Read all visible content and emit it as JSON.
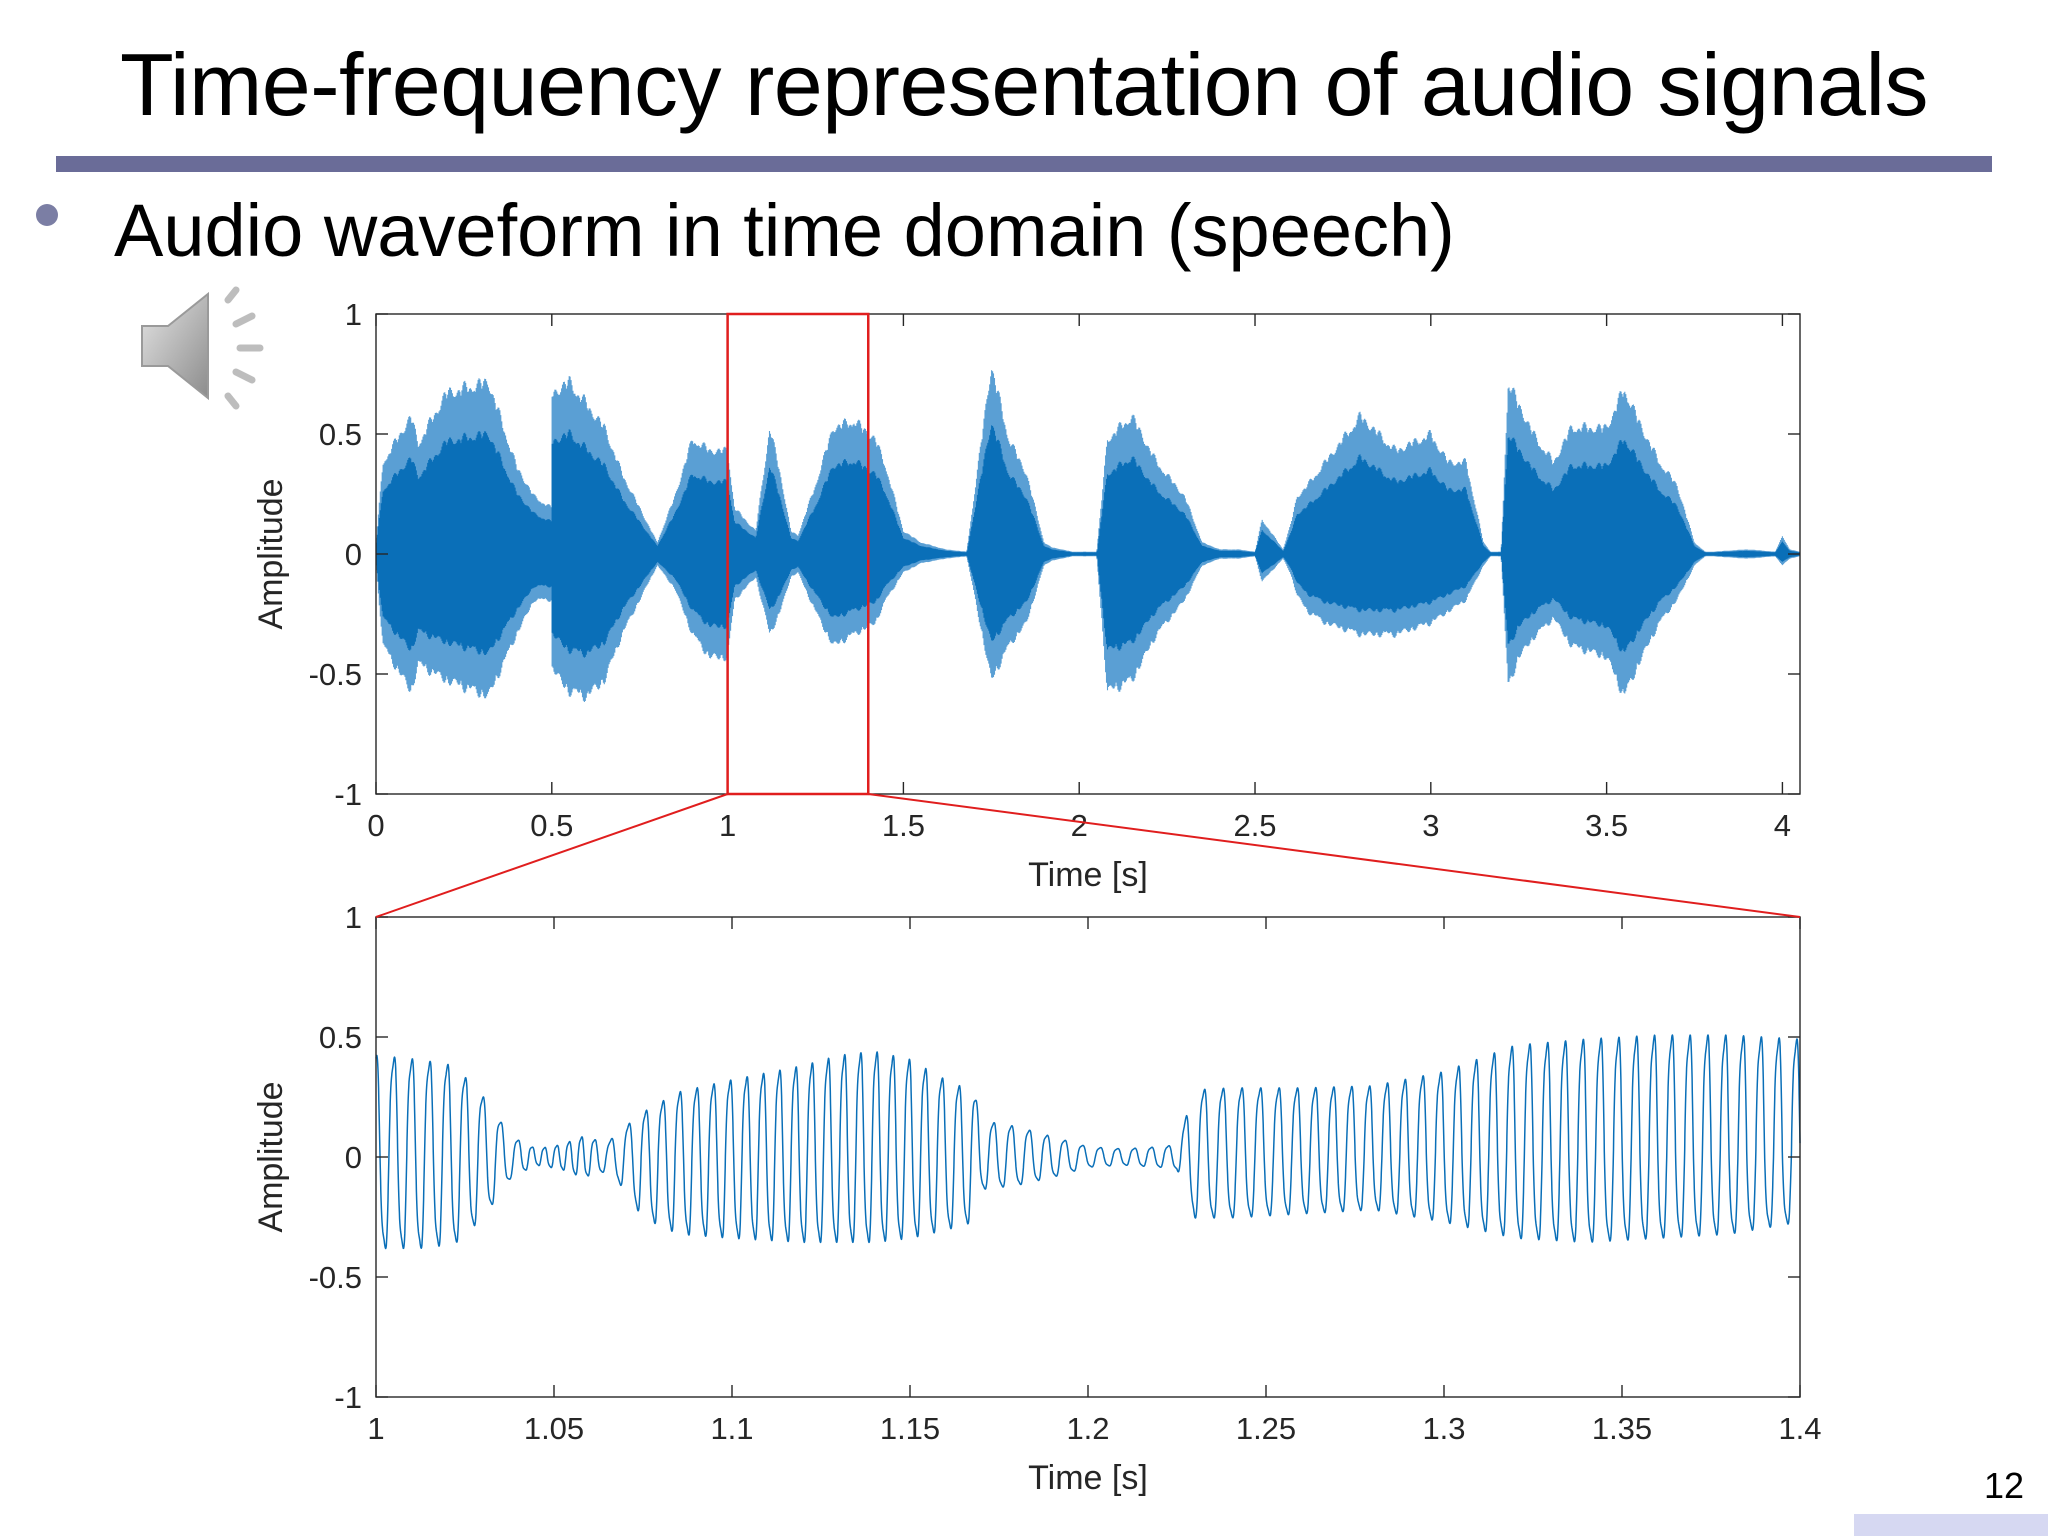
{
  "slide": {
    "title": "Time-frequency representation of audio signals",
    "bullet": "Audio waveform in time domain (speech)",
    "page_number": "12",
    "speaker_icon": "speaker-icon",
    "colors": {
      "rule": "#6a6c98",
      "wave": "#0a6fb8",
      "highlight": "#e01e1e",
      "corner": "#d6d8f2"
    }
  },
  "chart_data": [
    {
      "type": "line",
      "title": "",
      "xlabel": "Time [s]",
      "ylabel": "Amplitude",
      "xlim": [
        0,
        4.05
      ],
      "ylim": [
        -1,
        1
      ],
      "xticks": [
        0,
        0.5,
        1,
        1.5,
        2,
        2.5,
        3,
        3.5,
        4
      ],
      "xtick_labels": [
        "0",
        "0.5",
        "1",
        "1.5",
        "2",
        "2.5",
        "3",
        "3.5",
        "4"
      ],
      "yticks": [
        -1,
        -0.5,
        0,
        0.5,
        1
      ],
      "ytick_labels": [
        "-1",
        "-0.5",
        "0",
        "0.5",
        "1"
      ],
      "grid": false,
      "series": [
        {
          "style": "amplitude-envelope",
          "t": [
            0.0,
            0.02,
            0.1,
            0.12,
            0.2,
            0.32,
            0.4,
            0.45,
            0.5,
            0.5,
            0.55,
            0.6,
            0.65,
            0.7,
            0.8,
            0.85,
            0.9,
            0.95,
            1.0,
            1.02,
            1.08,
            1.12,
            1.15,
            1.18,
            1.2,
            1.25,
            1.3,
            1.36,
            1.42,
            1.45,
            1.5,
            1.55,
            1.62,
            1.68,
            1.75,
            1.8,
            1.85,
            1.9,
            1.92,
            1.98,
            2.02,
            2.05,
            2.08,
            2.15,
            2.22,
            2.3,
            2.35,
            2.4,
            2.45,
            2.5,
            2.52,
            2.58,
            2.6,
            2.62,
            2.65,
            2.7,
            2.8,
            2.9,
            3.0,
            3.05,
            3.1,
            3.15,
            3.17,
            3.2,
            3.22,
            3.25,
            3.3,
            3.35,
            3.4,
            3.5,
            3.55,
            3.6,
            3.65,
            3.7,
            3.75,
            3.78,
            3.8,
            3.9,
            3.98,
            4.0,
            4.02,
            4.05
          ],
          "upper": [
            0.05,
            0.4,
            0.6,
            0.48,
            0.7,
            0.75,
            0.38,
            0.25,
            0.2,
            0.7,
            0.75,
            0.65,
            0.55,
            0.35,
            0.05,
            0.25,
            0.5,
            0.45,
            0.45,
            0.2,
            0.1,
            0.55,
            0.35,
            0.1,
            0.08,
            0.3,
            0.55,
            0.58,
            0.5,
            0.38,
            0.1,
            0.05,
            0.02,
            0.01,
            0.82,
            0.5,
            0.35,
            0.05,
            0.03,
            0.01,
            0.01,
            0.01,
            0.5,
            0.6,
            0.4,
            0.25,
            0.05,
            0.02,
            0.02,
            0.01,
            0.15,
            0.02,
            0.12,
            0.25,
            0.3,
            0.4,
            0.6,
            0.45,
            0.52,
            0.4,
            0.4,
            0.05,
            0.01,
            0.01,
            0.75,
            0.65,
            0.5,
            0.4,
            0.55,
            0.55,
            0.72,
            0.55,
            0.4,
            0.3,
            0.05,
            0.01,
            0.01,
            0.02,
            0.01,
            0.08,
            0.02,
            0.01
          ],
          "lower": [
            -0.05,
            -0.4,
            -0.6,
            -0.48,
            -0.55,
            -0.62,
            -0.35,
            -0.2,
            -0.2,
            -0.5,
            -0.6,
            -0.62,
            -0.55,
            -0.35,
            -0.05,
            -0.15,
            -0.35,
            -0.45,
            -0.45,
            -0.2,
            -0.1,
            -0.35,
            -0.25,
            -0.1,
            -0.08,
            -0.25,
            -0.4,
            -0.35,
            -0.3,
            -0.2,
            -0.08,
            -0.04,
            -0.02,
            -0.01,
            -0.55,
            -0.4,
            -0.3,
            -0.05,
            -0.03,
            -0.01,
            -0.01,
            -0.01,
            -0.6,
            -0.55,
            -0.35,
            -0.2,
            -0.05,
            -0.02,
            -0.02,
            -0.01,
            -0.12,
            -0.02,
            -0.08,
            -0.18,
            -0.25,
            -0.3,
            -0.35,
            -0.35,
            -0.3,
            -0.25,
            -0.2,
            -0.05,
            -0.01,
            -0.01,
            -0.58,
            -0.45,
            -0.35,
            -0.28,
            -0.4,
            -0.45,
            -0.62,
            -0.45,
            -0.3,
            -0.2,
            -0.05,
            -0.01,
            -0.01,
            -0.02,
            -0.01,
            -0.05,
            -0.02,
            -0.01
          ]
        }
      ],
      "annotations": [
        {
          "type": "zoom-box",
          "x": [
            1.0,
            1.4
          ],
          "y": [
            -1,
            1
          ]
        }
      ]
    },
    {
      "type": "line",
      "title": "",
      "xlabel": "Time [s]",
      "ylabel": "Amplitude",
      "xlim": [
        1.0,
        1.4
      ],
      "ylim": [
        -1,
        1
      ],
      "xticks": [
        1,
        1.05,
        1.1,
        1.15,
        1.2,
        1.25,
        1.3,
        1.35,
        1.4
      ],
      "xtick_labels": [
        "1",
        "1.05",
        "1.1",
        "1.15",
        "1.2",
        "1.25",
        "1.3",
        "1.35",
        "1.4"
      ],
      "yticks": [
        -1,
        -0.5,
        0,
        0.5,
        1
      ],
      "ytick_labels": [
        "-1",
        "-0.5",
        "0",
        "0.5",
        "1"
      ],
      "grid": false,
      "series": [
        {
          "style": "oscillation",
          "t": [
            1.0,
            1.012,
            1.022,
            1.03,
            1.038,
            1.045,
            1.052,
            1.058,
            1.065,
            1.068,
            1.075,
            1.085,
            1.1,
            1.12,
            1.13,
            1.14,
            1.15,
            1.16,
            1.168,
            1.17,
            1.18,
            1.19,
            1.2,
            1.21,
            1.22,
            1.225,
            1.23,
            1.24,
            1.26,
            1.28,
            1.3,
            1.32,
            1.34,
            1.36,
            1.38,
            1.4
          ],
          "pos": [
            0.5,
            0.48,
            0.45,
            0.3,
            0.1,
            0.04,
            0.06,
            0.1,
            0.07,
            0.12,
            0.22,
            0.32,
            0.38,
            0.45,
            0.5,
            0.52,
            0.48,
            0.38,
            0.32,
            0.18,
            0.15,
            0.1,
            0.05,
            0.04,
            0.05,
            0.06,
            0.33,
            0.34,
            0.34,
            0.35,
            0.42,
            0.55,
            0.58,
            0.6,
            0.6,
            0.58
          ],
          "neg": [
            -0.45,
            -0.45,
            -0.43,
            -0.3,
            -0.1,
            -0.04,
            -0.06,
            -0.1,
            -0.07,
            -0.12,
            -0.3,
            -0.38,
            -0.4,
            -0.42,
            -0.42,
            -0.42,
            -0.4,
            -0.36,
            -0.32,
            -0.16,
            -0.14,
            -0.1,
            -0.05,
            -0.04,
            -0.05,
            -0.06,
            -0.3,
            -0.3,
            -0.28,
            -0.26,
            -0.32,
            -0.4,
            -0.42,
            -0.4,
            -0.38,
            -0.32
          ],
          "freq": [
            200,
            200,
            200,
            200,
            200,
            290,
            290,
            290,
            200,
            200,
            210,
            210,
            215,
            220,
            220,
            220,
            220,
            210,
            210,
            200,
            200,
            200,
            200,
            210,
            210,
            210,
            190,
            190,
            195,
            200,
            200,
            200,
            200,
            200,
            200,
            200
          ]
        }
      ]
    }
  ]
}
